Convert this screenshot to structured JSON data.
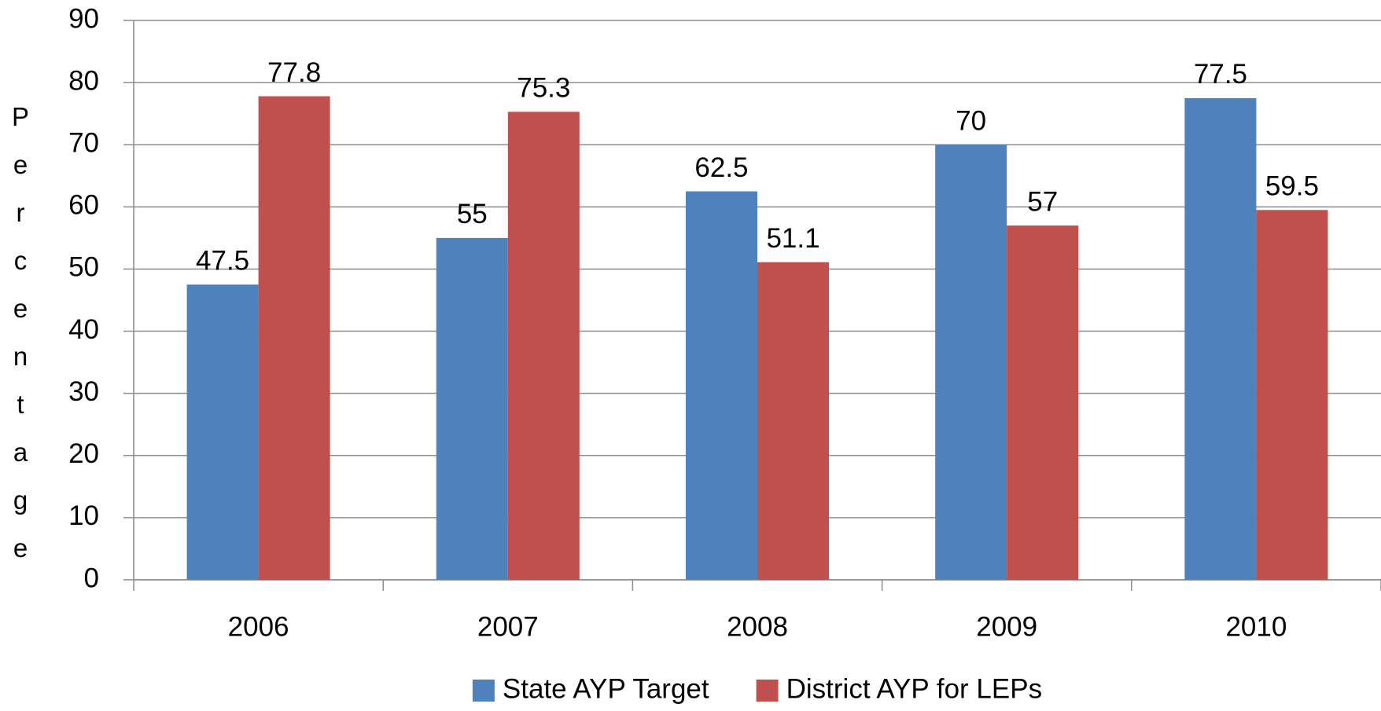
{
  "chart_data": {
    "type": "bar",
    "y_label": "Percentage",
    "categories": [
      "2006",
      "2007",
      "2008",
      "2009",
      "2010"
    ],
    "series": [
      {
        "name": "State AYP Target",
        "color": "#4f81bd",
        "values": [
          47.5,
          55,
          62.5,
          70,
          77.5
        ]
      },
      {
        "name": "District AYP for LEPs",
        "color": "#c0504d",
        "values": [
          77.8,
          75.3,
          51.1,
          57,
          59.5
        ]
      }
    ],
    "ylim": [
      0,
      90
    ],
    "yticks": [
      0,
      10,
      20,
      30,
      40,
      50,
      60,
      70,
      80,
      90
    ],
    "grid": true,
    "legend": "bottom"
  }
}
